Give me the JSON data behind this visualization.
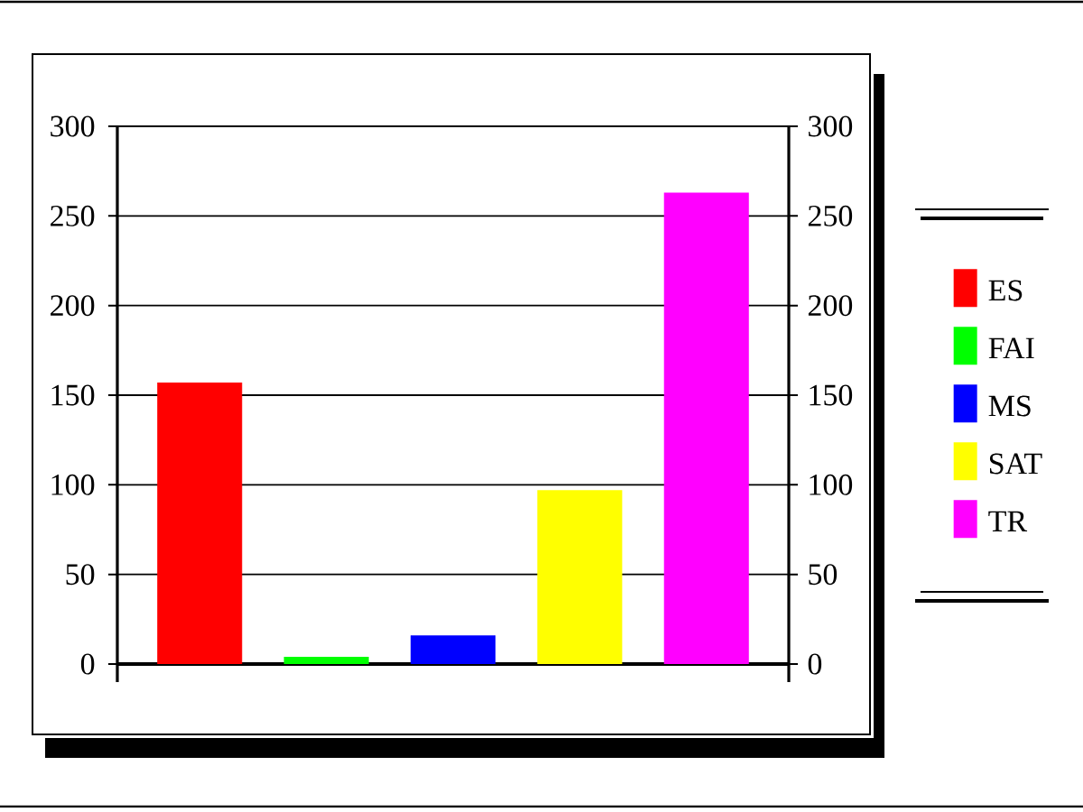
{
  "chart_data": {
    "type": "bar",
    "categories": [
      null,
      null,
      null,
      null,
      null
    ],
    "series": [
      {
        "name": "ES",
        "color": "#ff0000",
        "values": [
          157,
          null,
          null,
          null,
          null
        ]
      },
      {
        "name": "FAI",
        "color": "#00ff00",
        "values": [
          null,
          4,
          null,
          null,
          null
        ]
      },
      {
        "name": "MS",
        "color": "#0000ff",
        "values": [
          null,
          null,
          16,
          null,
          null
        ]
      },
      {
        "name": "SAT",
        "color": "#ffff00",
        "values": [
          null,
          null,
          null,
          97,
          null
        ]
      },
      {
        "name": "TR",
        "color": "#ff00ff",
        "values": [
          null,
          null,
          null,
          null,
          263
        ]
      }
    ],
    "ylim": [
      0,
      300
    ],
    "yticks": [
      0,
      50,
      100,
      150,
      200,
      250,
      300
    ],
    "y2lim": [
      0,
      300
    ],
    "y2ticks": [
      0,
      50,
      100,
      150,
      200,
      250,
      300
    ],
    "grid": "y",
    "legend": "right"
  }
}
